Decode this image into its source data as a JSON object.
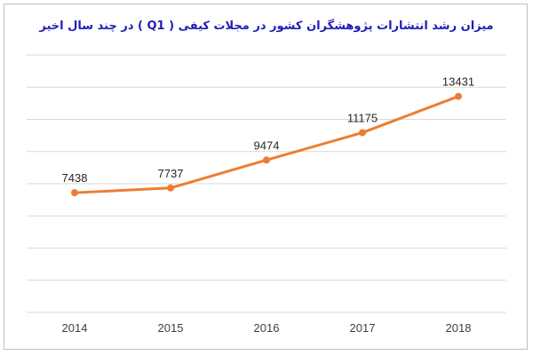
{
  "chart_data": {
    "type": "line",
    "title": "میزان رشد انتشارات پژوهشگران کشور در مجلات کیفی ( Q1 ) در چند سال اخیر",
    "categories": [
      "2014",
      "2015",
      "2016",
      "2017",
      "2018"
    ],
    "series": [
      {
        "values": [
          7438,
          7737,
          9474,
          11175,
          13431
        ]
      }
    ],
    "ylim": [
      0,
      16000
    ],
    "grid": true,
    "line_color": "#ed7d31"
  }
}
